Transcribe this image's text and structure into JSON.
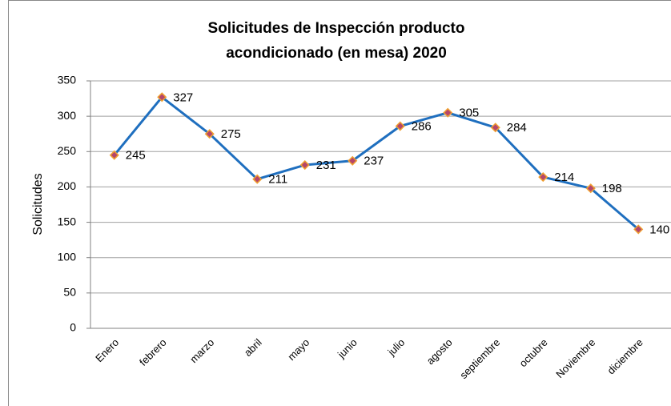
{
  "chart_data": {
    "type": "line",
    "title": [
      "Solicitudes de Inspección producto",
      "acondicionado (en mesa) 2020"
    ],
    "y_label": "Solicitudes",
    "categories": [
      "Enero",
      "febrero",
      "marzo",
      "abril",
      "mayo",
      "junio",
      "julio",
      "agosto",
      "septiembre",
      "octubre",
      "Noviembre",
      "diciembre"
    ],
    "values": [
      245,
      327,
      275,
      211,
      231,
      237,
      286,
      305,
      284,
      214,
      198,
      140
    ],
    "color": "#1f6fbf",
    "marker_color": "#b5466b",
    "marker_edge": "#f0a030",
    "label_color": "#5a5a9a",
    "ylim": [
      0,
      350
    ],
    "yticks": [
      0,
      50,
      100,
      150,
      200,
      250,
      300,
      350
    ],
    "grid": true
  }
}
